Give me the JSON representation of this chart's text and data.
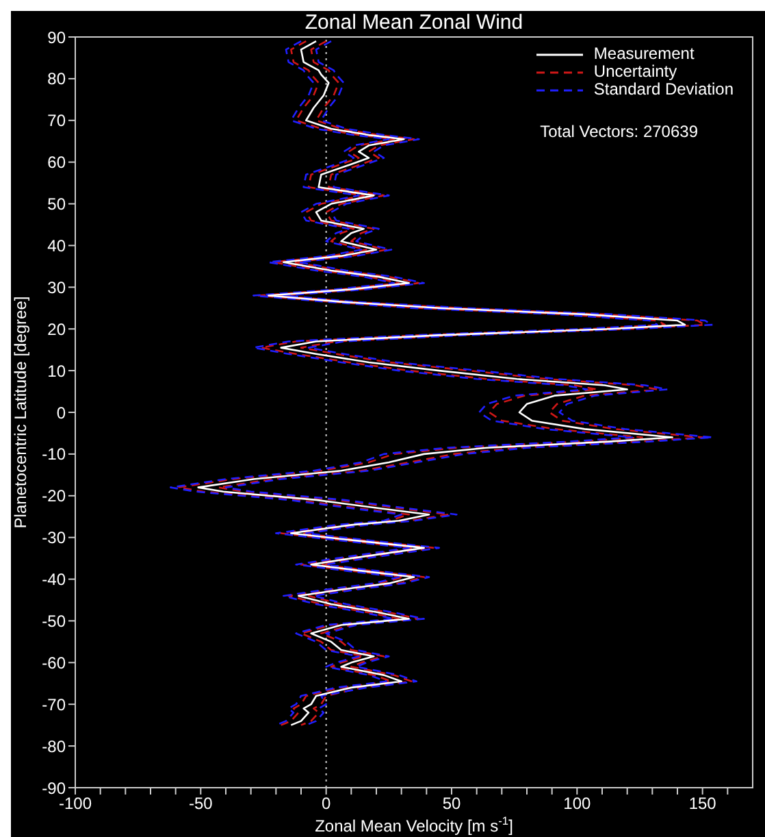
{
  "chart_data": {
    "type": "line",
    "title": "Zonal Mean Zonal Wind",
    "xlabel": "Zonal Mean Velocity [m s$^{-1}$]",
    "ylabel": "Planetocentric Latitude [degree]",
    "annotations": [
      "Total Vectors: 270639"
    ],
    "xlim": [
      -100,
      170
    ],
    "xticks": [
      -100,
      {
        "value": -90,
        "label": null
      },
      {
        "value": -80,
        "label": null
      },
      {
        "value": -70,
        "label": null
      },
      {
        "value": -60,
        "label": null
      },
      -50,
      {
        "value": -40,
        "label": null
      },
      {
        "value": -30,
        "label": null
      },
      {
        "value": -20,
        "label": null
      },
      {
        "value": -10,
        "label": null
      },
      0,
      {
        "value": 10,
        "label": null
      },
      {
        "value": 20,
        "label": null
      },
      {
        "value": 30,
        "label": null
      },
      {
        "value": 40,
        "label": null
      },
      50,
      {
        "value": 60,
        "label": null
      },
      {
        "value": 70,
        "label": null
      },
      {
        "value": 80,
        "label": null
      },
      {
        "value": 90,
        "label": null
      },
      100,
      {
        "value": 110,
        "label": null
      },
      {
        "value": 120,
        "label": null
      },
      {
        "value": 130,
        "label": null
      },
      {
        "value": 140,
        "label": null
      },
      150,
      {
        "value": 160,
        "label": null
      }
    ],
    "ylim": [
      -90,
      90
    ],
    "yticks": [
      -90,
      -80,
      -70,
      -60,
      -50,
      -40,
      -30,
      -20,
      -10,
      0,
      10,
      20,
      30,
      40,
      50,
      60,
      70,
      80,
      90
    ],
    "legend": "top right",
    "ref_lines": [
      {
        "axis": "x",
        "value": 0,
        "color": "#cccccc",
        "line_style": "dotted"
      }
    ],
    "series": [
      {
        "name": "Measurement",
        "color": "#ffffff",
        "line_style": "solid",
        "x": [
          -4,
          -10,
          -9,
          -3,
          -2,
          1,
          -1,
          -5,
          -8,
          2,
          17,
          31,
          17,
          13,
          17,
          10,
          -2,
          -3,
          19,
          2,
          -4,
          -2,
          15,
          10,
          6,
          20,
          6,
          -17,
          2,
          21,
          33,
          10,
          -23,
          6,
          45,
          103,
          140,
          143,
          113,
          45,
          -4,
          -18,
          -4,
          17,
          45,
          76,
          111,
          120,
          91,
          80,
          77,
          82,
          103,
          138,
          113,
          64,
          39,
          25,
          6,
          -29,
          -51,
          -41,
          -4,
          21,
          41,
          29,
          10,
          -14,
          8,
          39,
          10,
          -6,
          14,
          35,
          25,
          6,
          -11,
          2,
          21,
          33,
          6,
          -6,
          2,
          6,
          19,
          10,
          6,
          23,
          30,
          10,
          -4,
          -6,
          -9,
          -7,
          -10,
          -14
        ],
        "values": [
          89,
          87,
          84,
          82,
          81,
          79,
          76,
          73,
          70,
          68,
          66.5,
          65.5,
          64,
          62.5,
          61,
          59.5,
          57,
          54,
          52,
          50,
          48,
          46,
          44,
          43,
          41,
          39,
          37.5,
          36,
          34,
          32.5,
          31,
          29.5,
          28,
          26.5,
          25,
          23.5,
          22,
          21,
          20,
          18.5,
          17,
          15.5,
          14,
          12,
          10,
          8,
          6.5,
          5.5,
          4,
          2,
          0,
          -2,
          -4,
          -6,
          -7,
          -8.5,
          -10,
          -12,
          -14,
          -16,
          -18,
          -19,
          -21,
          -23,
          -24.5,
          -26,
          -27,
          -29,
          -30.5,
          -32.5,
          -35,
          -36.5,
          -38,
          -39.5,
          -41,
          -42.5,
          -44,
          -46,
          -48,
          -49.5,
          -51,
          -53,
          -55,
          -57,
          -58.5,
          -60,
          -61,
          -63,
          -64.5,
          -66,
          -68,
          -70,
          -71,
          -72,
          -74,
          -75
        ]
      },
      {
        "name": "Uncertainty",
        "color": "#d01818",
        "line_style": "dashed",
        "x": [
          -8,
          -14,
          -13,
          -7,
          -6,
          -3,
          -5,
          -9,
          -12,
          -2,
          13,
          27,
          13,
          9,
          13,
          6,
          -6,
          -7,
          15,
          -2,
          -8,
          -6,
          11,
          6,
          2,
          16,
          2,
          -21,
          -2,
          17,
          29,
          6,
          -27,
          2,
          37,
          95,
          132,
          135,
          105,
          37,
          -12,
          -26,
          -12,
          9,
          33,
          64,
          99,
          108,
          79,
          68,
          65,
          70,
          91,
          126,
          101,
          52,
          27,
          17,
          -2,
          -37,
          -59,
          -49,
          -12,
          13,
          33,
          25,
          6,
          -18,
          4,
          35,
          6,
          -10,
          10,
          31,
          21,
          2,
          -15,
          -2,
          17,
          29,
          2,
          -10,
          -2,
          2,
          15,
          6,
          2,
          19,
          26,
          6,
          -8,
          -10,
          -13,
          -11,
          -14,
          -18
        ],
        "values": [
          89,
          87,
          84,
          82,
          81,
          79,
          76,
          73,
          70,
          68,
          66.5,
          65.5,
          64,
          62.5,
          61,
          59.5,
          57,
          54,
          52,
          50,
          48,
          46,
          44,
          43,
          41,
          39,
          37.5,
          36,
          34,
          32.5,
          31,
          29.5,
          28,
          26.5,
          25,
          23.5,
          22,
          21,
          20,
          18.5,
          17,
          15.5,
          14,
          12,
          10,
          8,
          6.5,
          5.5,
          4,
          2,
          0,
          -2,
          -4,
          -6,
          -7,
          -8.5,
          -10,
          -12,
          -14,
          -16,
          -18,
          -19,
          -21,
          -23,
          -24.5,
          -26,
          -27,
          -29,
          -30.5,
          -32.5,
          -35,
          -36.5,
          -38,
          -39.5,
          -41,
          -42.5,
          -44,
          -46,
          -48,
          -49.5,
          -51,
          -53,
          -55,
          -57,
          -58.5,
          -60,
          -61,
          -63,
          -64.5,
          -66,
          -68,
          -70,
          -71,
          -72,
          -74,
          -75
        ]
      },
      {
        "color": "#d01818",
        "line_style": "dashed",
        "x": [
          0,
          -6,
          -5,
          1,
          2,
          5,
          3,
          -1,
          -4,
          6,
          21,
          35,
          21,
          17,
          21,
          14,
          2,
          1,
          23,
          6,
          0,
          2,
          19,
          14,
          10,
          24,
          10,
          -13,
          6,
          25,
          37,
          14,
          -19,
          10,
          53,
          111,
          148,
          151,
          121,
          53,
          4,
          -10,
          4,
          25,
          57,
          88,
          123,
          132,
          103,
          92,
          89,
          94,
          115,
          150,
          125,
          76,
          51,
          33,
          14,
          -21,
          -43,
          -33,
          4,
          29,
          49,
          33,
          14,
          -10,
          12,
          43,
          14,
          -2,
          18,
          39,
          29,
          10,
          -7,
          6,
          25,
          37,
          10,
          -2,
          6,
          10,
          23,
          14,
          10,
          27,
          34,
          14,
          0,
          -2,
          -5,
          -3,
          -6,
          -10
        ],
        "values": [
          89,
          87,
          84,
          82,
          81,
          79,
          76,
          73,
          70,
          68,
          66.5,
          65.5,
          64,
          62.5,
          61,
          59.5,
          57,
          54,
          52,
          50,
          48,
          46,
          44,
          43,
          41,
          39,
          37.5,
          36,
          34,
          32.5,
          31,
          29.5,
          28,
          26.5,
          25,
          23.5,
          22,
          21,
          20,
          18.5,
          17,
          15.5,
          14,
          12,
          10,
          8,
          6.5,
          5.5,
          4,
          2,
          0,
          -2,
          -4,
          -6,
          -7,
          -8.5,
          -10,
          -12,
          -14,
          -16,
          -18,
          -19,
          -21,
          -23,
          -24.5,
          -26,
          -27,
          -29,
          -30.5,
          -32.5,
          -35,
          -36.5,
          -38,
          -39.5,
          -41,
          -42.5,
          -44,
          -46,
          -48,
          -49.5,
          -51,
          -53,
          -55,
          -57,
          -58.5,
          -60,
          -61,
          -63,
          -64.5,
          -66,
          -68,
          -70,
          -71,
          -72,
          -74,
          -75
        ]
      },
      {
        "name": "Standard Deviation",
        "color": "#2020ff",
        "line_style": "dashed",
        "x": [
          -10,
          -16,
          -15,
          -9,
          -8,
          -5,
          -7,
          -11,
          -14,
          -4,
          11,
          25,
          11,
          7,
          11,
          4,
          -8,
          -9,
          13,
          -4,
          -10,
          -8,
          9,
          4,
          0,
          14,
          0,
          -23,
          -4,
          15,
          27,
          4,
          -29,
          0,
          34,
          92,
          129,
          132,
          102,
          34,
          -15,
          -29,
          -15,
          6,
          29,
          60,
          95,
          104,
          75,
          64,
          61,
          66,
          87,
          122,
          97,
          48,
          23,
          14,
          -5,
          -40,
          -62,
          -52,
          -15,
          10,
          30,
          23,
          4,
          -20,
          2,
          33,
          4,
          -12,
          8,
          29,
          19,
          0,
          -17,
          -4,
          15,
          27,
          0,
          -12,
          -4,
          0,
          13,
          4,
          0,
          17,
          24,
          4,
          -10,
          -12,
          -15,
          -13,
          -16,
          -20
        ],
        "values": [
          89,
          87,
          84,
          82,
          81,
          79,
          76,
          73,
          70,
          68,
          66.5,
          65.5,
          64,
          62.5,
          61,
          59.5,
          57,
          54,
          52,
          50,
          48,
          46,
          44,
          43,
          41,
          39,
          37.5,
          36,
          34,
          32.5,
          31,
          29.5,
          28,
          26.5,
          25,
          23.5,
          22,
          21,
          20,
          18.5,
          17,
          15.5,
          14,
          12,
          10,
          8,
          6.5,
          5.5,
          4,
          2,
          0,
          -2,
          -4,
          -6,
          -7,
          -8.5,
          -10,
          -12,
          -14,
          -16,
          -18,
          -19,
          -21,
          -23,
          -24.5,
          -26,
          -27,
          -29,
          -30.5,
          -32.5,
          -35,
          -36.5,
          -38,
          -39.5,
          -41,
          -42.5,
          -44,
          -46,
          -48,
          -49.5,
          -51,
          -53,
          -55,
          -57,
          -58.5,
          -60,
          -61,
          -63,
          -64.5,
          -66,
          -68,
          -70,
          -71,
          -72,
          -74,
          -75
        ]
      },
      {
        "color": "#2020ff",
        "line_style": "dashed",
        "x": [
          2,
          -4,
          -3,
          3,
          4,
          7,
          5,
          1,
          -2,
          8,
          23,
          37,
          23,
          19,
          23,
          16,
          4,
          3,
          25,
          8,
          2,
          4,
          21,
          16,
          12,
          26,
          12,
          -11,
          8,
          27,
          39,
          16,
          -17,
          12,
          56,
          114,
          151,
          154,
          124,
          56,
          7,
          -7,
          7,
          28,
          61,
          92,
          127,
          136,
          107,
          96,
          93,
          98,
          119,
          154,
          129,
          80,
          55,
          36,
          17,
          -18,
          -40,
          -30,
          7,
          32,
          52,
          35,
          16,
          -8,
          14,
          45,
          16,
          0,
          20,
          41,
          31,
          12,
          -5,
          8,
          27,
          39,
          12,
          0,
          8,
          12,
          25,
          16,
          12,
          29,
          36,
          16,
          -2,
          0,
          -3,
          -1,
          -4,
          -8
        ],
        "values": [
          89,
          87,
          84,
          82,
          81,
          79,
          76,
          73,
          70,
          68,
          66.5,
          65.5,
          64,
          62.5,
          61,
          59.5,
          57,
          54,
          52,
          50,
          48,
          46,
          44,
          43,
          41,
          39,
          37.5,
          36,
          34,
          32.5,
          31,
          29.5,
          28,
          26.5,
          25,
          23.5,
          22,
          21,
          20,
          18.5,
          17,
          15.5,
          14,
          12,
          10,
          8,
          6.5,
          5.5,
          4,
          2,
          0,
          -2,
          -4,
          -6,
          -7,
          -8.5,
          -10,
          -12,
          -14,
          -16,
          -18,
          -19,
          -21,
          -23,
          -24.5,
          -26,
          -27,
          -29,
          -30.5,
          -32.5,
          -35,
          -36.5,
          -38,
          -39.5,
          -41,
          -42.5,
          -44,
          -46,
          -48,
          -49.5,
          -51,
          -53,
          -55,
          -57,
          -58.5,
          -60,
          -61,
          -63,
          -64.5,
          -66,
          -68,
          -70,
          -71,
          -72,
          -74,
          -75
        ]
      }
    ]
  }
}
